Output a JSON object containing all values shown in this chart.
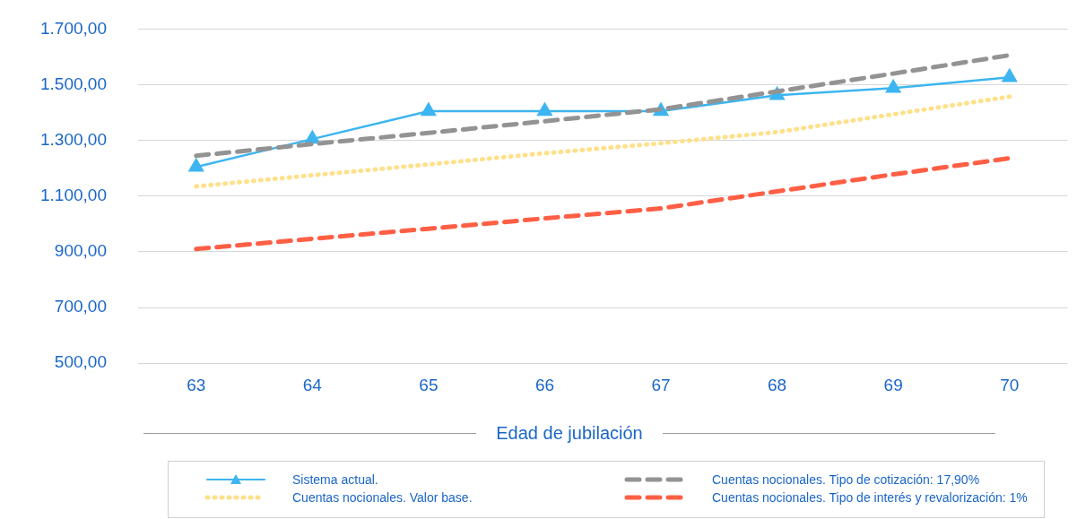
{
  "chart_data": {
    "type": "line",
    "xlabel": "Edad de jubilación",
    "categories": [
      "63",
      "64",
      "65",
      "66",
      "67",
      "68",
      "69",
      "70"
    ],
    "series": [
      {
        "name": "Sistema actual.",
        "color": "#3db5f0",
        "marker": "triangle",
        "line_style": "solid",
        "values": [
          1205,
          1305,
          1405,
          1405,
          1405,
          1462,
          1488,
          1527
        ]
      },
      {
        "name": "Cuentas nocionales. Valor base.",
        "color": "#ffe08a",
        "marker": "none",
        "line_style": "dotted",
        "values": [
          1135,
          1175,
          1214,
          1254,
          1290,
          1330,
          1394,
          1457
        ]
      },
      {
        "name": "Cuentas nocionales. Tipo de cotización: 17,90%",
        "color": "#939393",
        "marker": "none",
        "line_style": "dashed",
        "values": [
          1245,
          1287,
          1327,
          1369,
          1412,
          1476,
          1540,
          1606
        ]
      },
      {
        "name": "Cuentas nocionales. Tipo de interés y revalorización: 1%",
        "color": "#ff5f45",
        "marker": "none",
        "line_style": "dashed",
        "values": [
          910,
          947,
          983,
          1020,
          1056,
          1117,
          1178,
          1236
        ]
      }
    ],
    "ylim": [
      500,
      1700
    ],
    "yticks": [
      {
        "value": 500,
        "label": "500,00"
      },
      {
        "value": 700,
        "label": "700,00"
      },
      {
        "value": 900,
        "label": "900,00"
      },
      {
        "value": 1100,
        "label": "1.100,00"
      },
      {
        "value": 1300,
        "label": "1.300,00"
      },
      {
        "value": 1500,
        "label": "1.500,00"
      },
      {
        "value": 1700,
        "label": "1.700,00"
      }
    ],
    "grid": "y",
    "legend": "bottom"
  }
}
